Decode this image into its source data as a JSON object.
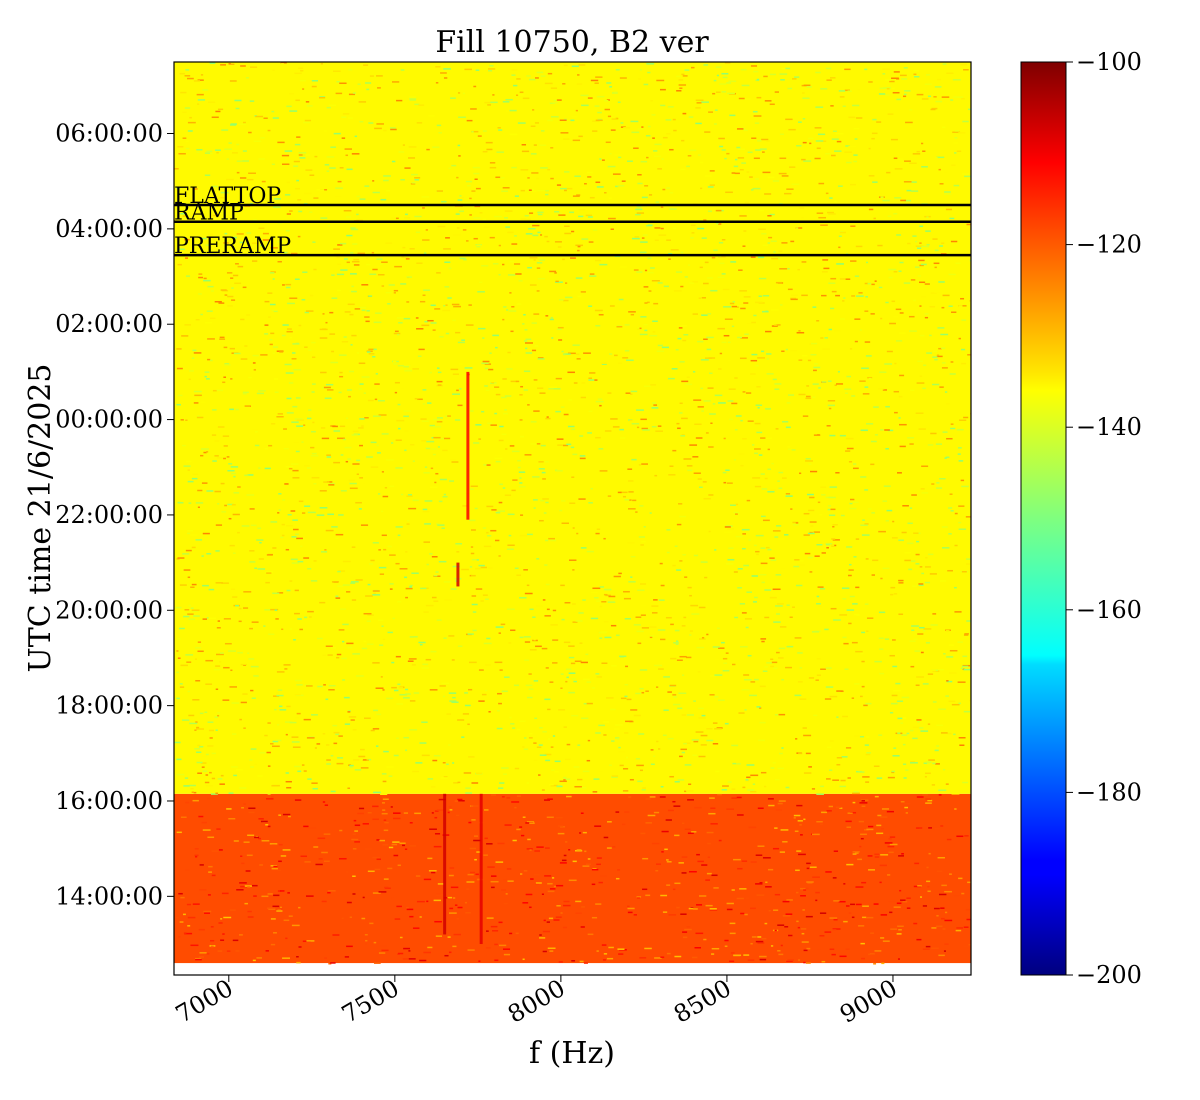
{
  "chart_data": {
    "type": "heatmap",
    "title": "Fill 10750, B2 ver",
    "xlabel": "f (Hz)",
    "ylabel": "UTC time 21/6/2025",
    "xlim": [
      6835,
      9235
    ],
    "x_ticks": [
      7000,
      7500,
      8000,
      8500,
      9000
    ],
    "x_tick_labels": [
      "7000",
      "7500",
      "8000",
      "8500",
      "9000"
    ],
    "ylim_hours": [
      12.35,
      31.5
    ],
    "y_ticks_hours": [
      14,
      16,
      18,
      20,
      22,
      24,
      26,
      28,
      30
    ],
    "y_tick_labels": [
      "14:00:00",
      "16:00:00",
      "18:00:00",
      "20:00:00",
      "22:00:00",
      "00:00:00",
      "02:00:00",
      "04:00:00",
      "06:00:00"
    ],
    "colorbar": {
      "colormap": "jet",
      "vmin": -200,
      "vmax": -100,
      "ticks": [
        -200,
        -180,
        -160,
        -140,
        -120,
        -100
      ],
      "tick_labels": [
        "−200",
        "−180",
        "−160",
        "−140",
        "−120",
        "−100"
      ]
    },
    "regions": [
      {
        "t_start_hours": 12.6,
        "t_end_hours": 16.15,
        "level_db": -120
      },
      {
        "t_start_hours": 16.15,
        "t_end_hours": 31.5,
        "level_db": -137
      }
    ],
    "phase_markers": [
      {
        "label": "FLATTOP",
        "time_hours": 28.5
      },
      {
        "label": "RAMP",
        "time_hours": 28.15
      },
      {
        "label": "PRERAMP",
        "time_hours": 27.45
      }
    ],
    "features": [
      {
        "f_hz": 7720,
        "t_start_hours": 25.0,
        "t_end_hours": 21.9,
        "level_db": -112
      },
      {
        "f_hz": 7690,
        "t_start_hours": 21.0,
        "t_end_hours": 20.5,
        "level_db": -108
      },
      {
        "f_hz": 7650,
        "t_start_hours": 16.15,
        "t_end_hours": 13.2,
        "level_db": -108
      },
      {
        "f_hz": 7760,
        "t_start_hours": 16.15,
        "t_end_hours": 13.0,
        "level_db": -110
      }
    ]
  }
}
